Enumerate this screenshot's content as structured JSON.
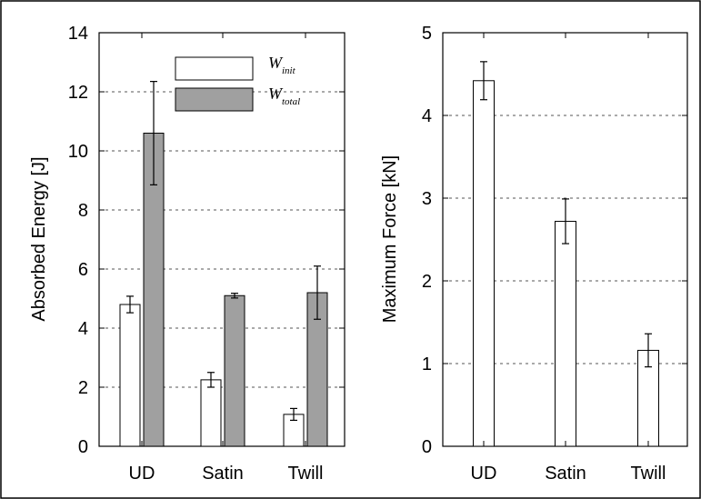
{
  "colors": {
    "init_fill": "#ffffff",
    "total_fill": "#a0a0a0",
    "grid": "#555555",
    "frame": "#000000"
  },
  "chart_data": [
    {
      "type": "bar",
      "categories": [
        "UD",
        "Satin",
        "Twill"
      ],
      "ylabel": "Absorbed Energy [J]",
      "xlabel": "",
      "ylim": [
        0,
        14
      ],
      "yticks": [
        0,
        2,
        4,
        6,
        8,
        10,
        12,
        14
      ],
      "grid": "y-dashed",
      "legend_placement": "top-center",
      "series": [
        {
          "name": "W",
          "subscript": "init",
          "color": "#ffffff",
          "values": [
            4.8,
            2.25,
            1.08
          ],
          "errors": [
            0.28,
            0.25,
            0.2
          ]
        },
        {
          "name": "W",
          "subscript": "total",
          "color": "#a0a0a0",
          "values": [
            10.6,
            5.1,
            5.2
          ],
          "errors": [
            1.75,
            0.08,
            0.9
          ]
        }
      ]
    },
    {
      "type": "bar",
      "categories": [
        "UD",
        "Satin",
        "Twill"
      ],
      "ylabel": "Maximum Force [kN]",
      "xlabel": "",
      "ylim": [
        0,
        5
      ],
      "yticks": [
        0,
        1,
        2,
        3,
        4,
        5
      ],
      "grid": "y-dashed",
      "series": [
        {
          "color": "#ffffff",
          "values": [
            4.42,
            2.72,
            1.16
          ],
          "errors": [
            0.23,
            0.27,
            0.2
          ]
        }
      ]
    }
  ]
}
